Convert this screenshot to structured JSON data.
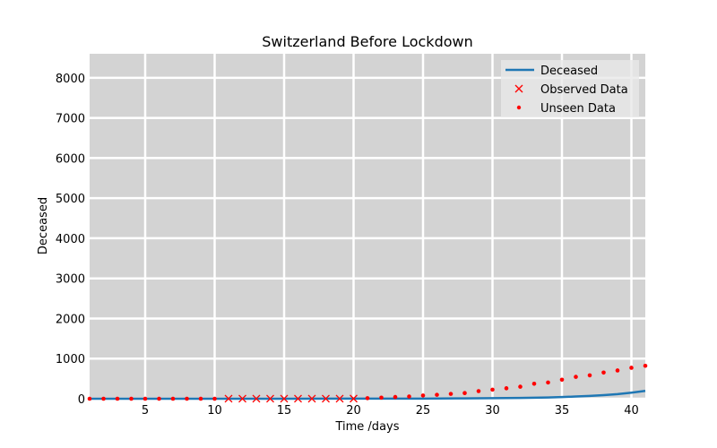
{
  "chart_data": {
    "type": "line",
    "title": "Switzerland Before Lockdown",
    "xlabel": "Time /days",
    "ylabel": "Deceased",
    "xlim": [
      1,
      41
    ],
    "ylim": [
      0,
      8600
    ],
    "xticks": [
      5,
      10,
      15,
      20,
      25,
      30,
      35,
      40
    ],
    "yticks": [
      0,
      1000,
      2000,
      3000,
      4000,
      5000,
      6000,
      7000,
      8000
    ],
    "grid": true,
    "background": "#d3d3d3",
    "legend_position": "top-right",
    "series": [
      {
        "name": "Deceased",
        "kind": "line",
        "color": "#1f77b4",
        "x": [
          1,
          5,
          10,
          15,
          20,
          25,
          28,
          30,
          32,
          34,
          35,
          36,
          37,
          38,
          39,
          40,
          41
        ],
        "y": [
          0,
          0,
          0,
          1,
          2,
          4,
          8,
          13,
          20,
          32,
          42,
          55,
          70,
          90,
          115,
          150,
          195
        ]
      },
      {
        "name": "Observed Data",
        "kind": "marker-x",
        "color": "#ff0000",
        "x": [
          11,
          12,
          13,
          14,
          15,
          16,
          17,
          18,
          19,
          20
        ],
        "y": [
          1,
          1,
          1,
          1,
          1,
          1,
          1,
          2,
          2,
          3
        ]
      },
      {
        "name": "Unseen Data",
        "kind": "marker-dot",
        "color": "#ff0000",
        "x": [
          1,
          2,
          3,
          4,
          5,
          6,
          7,
          8,
          9,
          10,
          21,
          22,
          23,
          24,
          25,
          26,
          27,
          28,
          29,
          30,
          31,
          32,
          33,
          34,
          35,
          36,
          37,
          38,
          39,
          40,
          41
        ],
        "y": [
          0,
          0,
          0,
          0,
          0,
          0,
          0,
          0,
          0,
          0,
          13,
          27,
          43,
          56,
          80,
          98,
          120,
          141,
          190,
          226,
          261,
          300,
          373,
          405,
          474,
          545,
          583,
          653,
          705,
          771,
          821
        ]
      }
    ]
  }
}
